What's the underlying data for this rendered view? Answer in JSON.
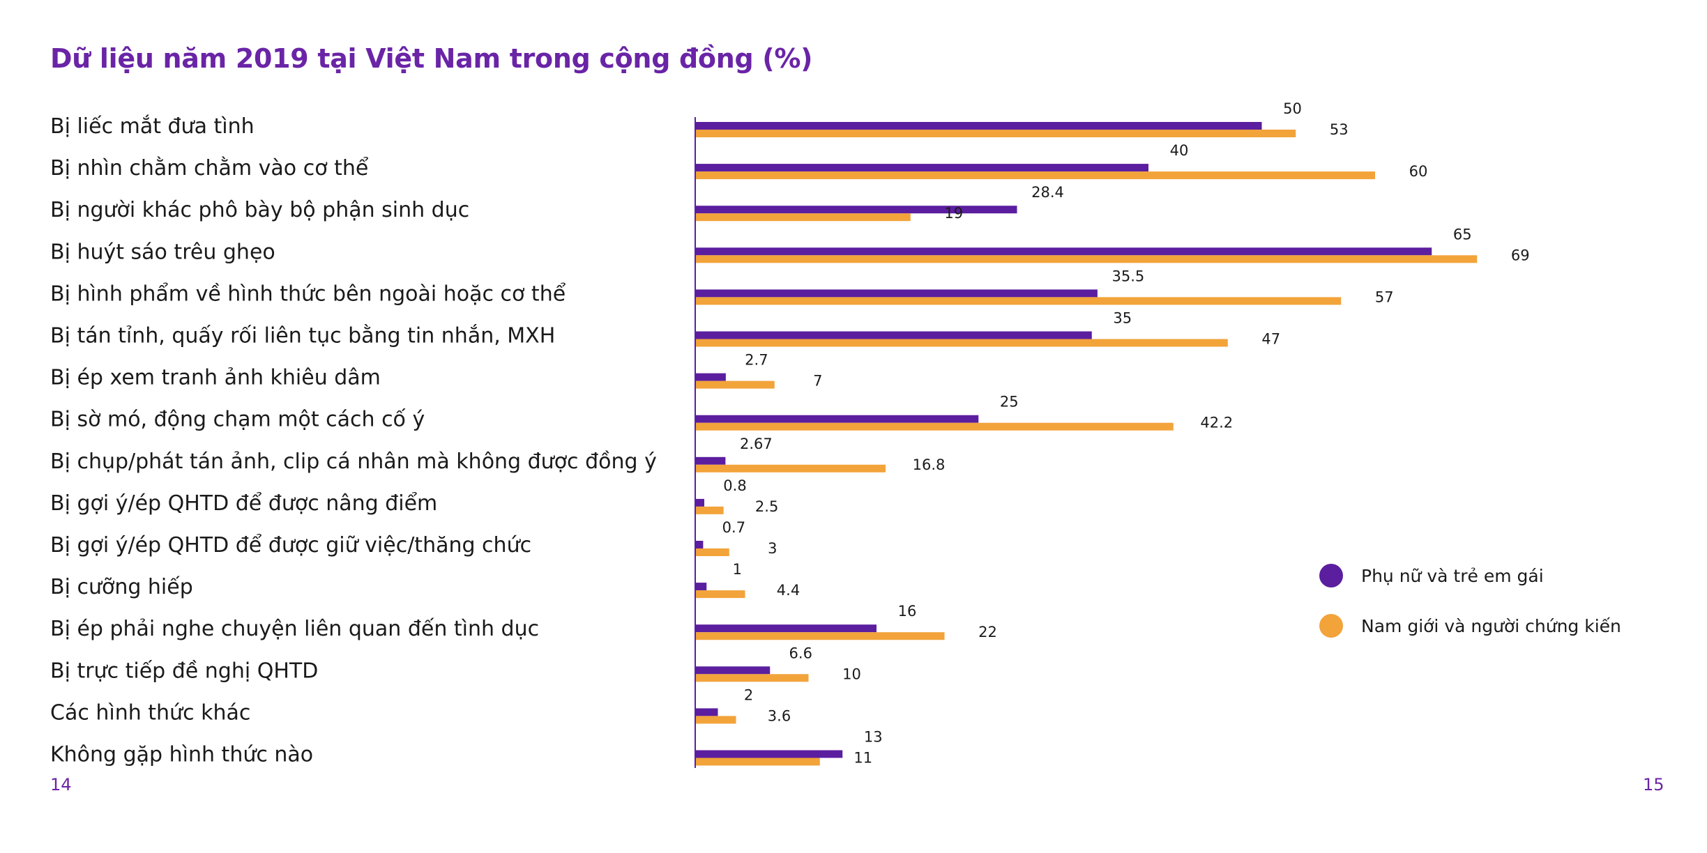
{
  "page": {
    "title": "Dữ liệu năm 2019 tại Việt Nam trong cộng đồng (%)",
    "page_left": "14",
    "page_right": "15"
  },
  "chart_data": {
    "type": "bar",
    "orientation": "horizontal",
    "title": "Dữ liệu năm 2019 tại Việt Nam trong cộng đồng (%)",
    "xlim": [
      0,
      75
    ],
    "grid": false,
    "legend_position": "right",
    "categories": [
      "Bị liếc mắt đưa tình",
      "Bị nhìn chằm chằm vào cơ thể",
      "Bị người khác phô bày bộ phận sinh dục",
      "Bị huýt sáo trêu ghẹo",
      "Bị hình phẩm về hình thức bên ngoài hoặc cơ thể",
      "Bị tán tỉnh, quấy rối liên tục bằng tin nhắn, MXH",
      "Bị ép xem tranh ảnh khiêu dâm",
      "Bị sờ mó, động chạm một cách cố ý",
      "Bị chụp/phát tán ảnh, clip cá nhân mà không được đồng ý",
      "Bị gợi ý/ép QHTD để được nâng điểm",
      "Bị gợi ý/ép QHTD để được giữ việc/thăng chức",
      "Bị cưỡng hiếp",
      "Bị ép phải nghe chuyện liên quan đến tình dục",
      "Bị trực tiếp đề nghị QHTD",
      "Các hình thức khác",
      "Không gặp hình thức nào"
    ],
    "series": [
      {
        "name": "Phụ nữ và trẻ em gái",
        "color": "#5b1e9f",
        "values": [
          50,
          40,
          28.4,
          65,
          35.5,
          35,
          2.7,
          25,
          2.67,
          0.8,
          0.7,
          1,
          16,
          6.6,
          2,
          13
        ],
        "labels": [
          "50",
          "40",
          "28.4",
          "65",
          "35.5",
          "35",
          "2.7",
          "25",
          "2.67",
          "0.8",
          "0.7",
          "1",
          "16",
          "6.6",
          "2",
          "13"
        ]
      },
      {
        "name": "Nam giới và người chứng kiến",
        "color": "#f2a33a",
        "values": [
          53,
          60,
          19,
          69,
          57,
          47,
          7,
          42.2,
          16.8,
          2.5,
          3,
          4.4,
          22,
          10,
          3.6,
          11
        ],
        "labels": [
          "53",
          "60",
          "19",
          "69",
          "57",
          "47",
          "7",
          "42.2",
          "16.8",
          "2.5",
          "3",
          "4.4",
          "22",
          "10",
          "3.6",
          "11"
        ]
      }
    ]
  }
}
